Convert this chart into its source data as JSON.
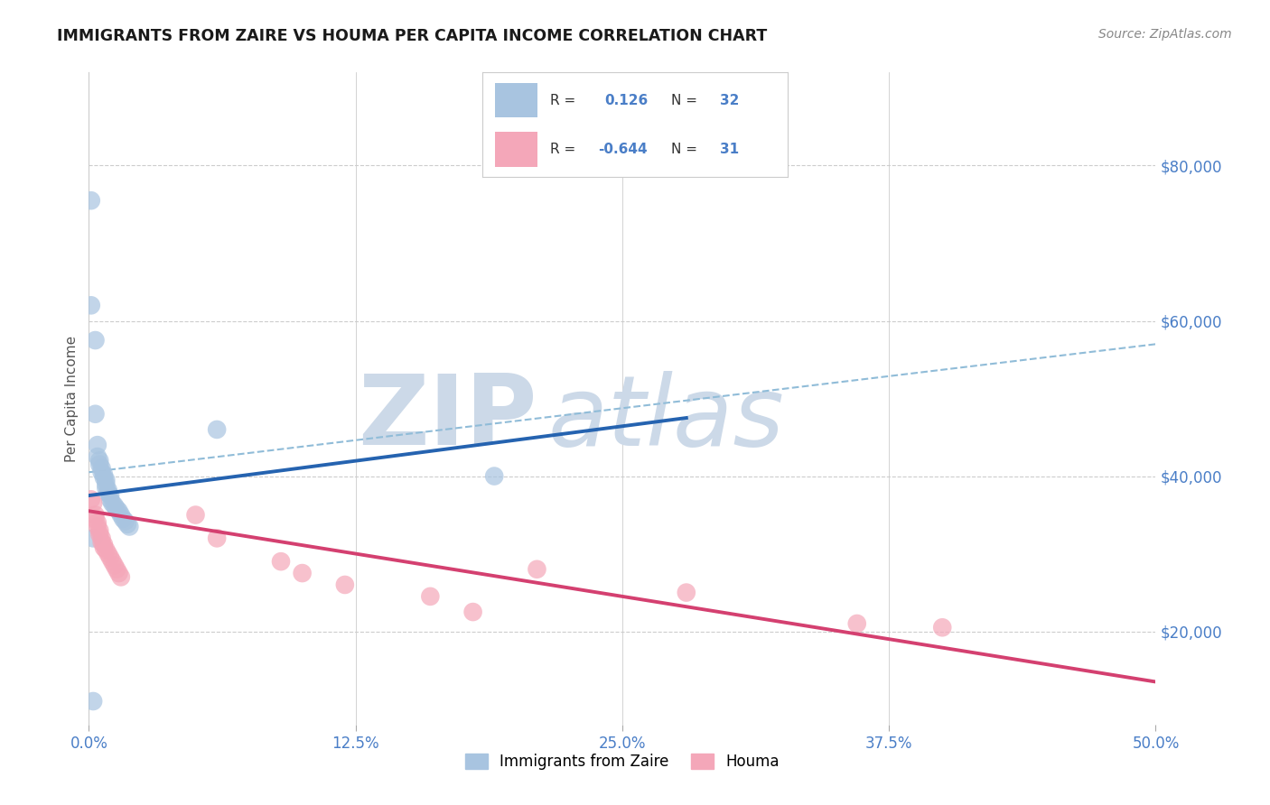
{
  "title": "IMMIGRANTS FROM ZAIRE VS HOUMA PER CAPITA INCOME CORRELATION CHART",
  "source": "Source: ZipAtlas.com",
  "ylabel": "Per Capita Income",
  "xlabel_ticks": [
    "0.0%",
    "12.5%",
    "25.0%",
    "37.5%",
    "50.0%"
  ],
  "ytick_labels": [
    "$20,000",
    "$40,000",
    "$60,000",
    "$80,000"
  ],
  "ytick_values": [
    20000,
    40000,
    60000,
    80000
  ],
  "xlim": [
    0.0,
    0.5
  ],
  "ylim": [
    8000,
    92000
  ],
  "blue_R": 0.126,
  "blue_N": 32,
  "pink_R": -0.644,
  "pink_N": 31,
  "blue_color": "#a8c4e0",
  "blue_line_color": "#2563b0",
  "pink_color": "#f4a7b9",
  "pink_line_color": "#d44070",
  "dashed_line_color": "#90bcd8",
  "watermark_zip": "ZIP",
  "watermark_atlas": "atlas",
  "watermark_color": "#ccd9e8",
  "background_color": "#ffffff",
  "grid_color": "#cccccc",
  "blue_dots_x": [
    0.001,
    0.001,
    0.003,
    0.003,
    0.004,
    0.004,
    0.005,
    0.005,
    0.006,
    0.006,
    0.007,
    0.007,
    0.008,
    0.008,
    0.008,
    0.009,
    0.009,
    0.01,
    0.01,
    0.011,
    0.012,
    0.013,
    0.014,
    0.015,
    0.016,
    0.017,
    0.018,
    0.019,
    0.06,
    0.19,
    0.002,
    0.002
  ],
  "blue_dots_y": [
    75500,
    62000,
    57500,
    48000,
    44000,
    42500,
    42000,
    41500,
    41000,
    40500,
    40200,
    39800,
    39500,
    39000,
    38500,
    38200,
    37800,
    37500,
    37000,
    36500,
    36200,
    35800,
    35500,
    35000,
    34500,
    34200,
    33800,
    33500,
    46000,
    40000,
    32000,
    11000
  ],
  "pink_dots_x": [
    0.001,
    0.002,
    0.003,
    0.003,
    0.004,
    0.004,
    0.005,
    0.005,
    0.006,
    0.006,
    0.007,
    0.007,
    0.008,
    0.009,
    0.01,
    0.011,
    0.012,
    0.013,
    0.014,
    0.015,
    0.05,
    0.06,
    0.09,
    0.1,
    0.12,
    0.16,
    0.18,
    0.21,
    0.28,
    0.36,
    0.4
  ],
  "pink_dots_y": [
    37000,
    36500,
    35000,
    34500,
    34000,
    33500,
    33000,
    32500,
    32000,
    31500,
    31200,
    30800,
    30500,
    30000,
    29500,
    29000,
    28500,
    28000,
    27500,
    27000,
    35000,
    32000,
    29000,
    27500,
    26000,
    24500,
    22500,
    28000,
    25000,
    21000,
    20500
  ],
  "blue_line_x": [
    0.0,
    0.28
  ],
  "blue_line_y": [
    37500,
    47500
  ],
  "pink_line_x": [
    0.0,
    0.5
  ],
  "pink_line_y": [
    35500,
    13500
  ],
  "dashed_line_x": [
    0.0,
    0.5
  ],
  "dashed_line_y": [
    40500,
    57000
  ],
  "dot_size": 220,
  "legend_text_color": "#2563b0",
  "legend_r_color": "#333333"
}
